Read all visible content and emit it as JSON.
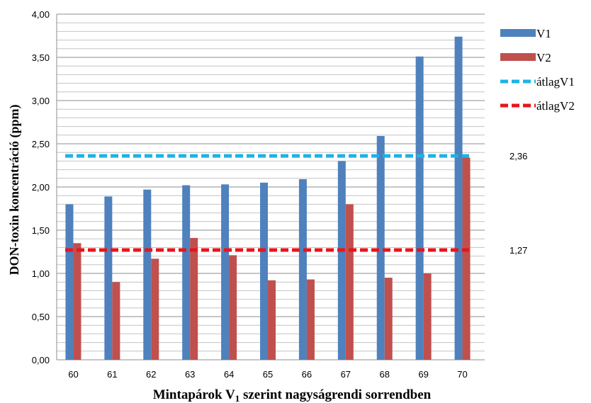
{
  "chart_data": {
    "type": "bar",
    "title": "",
    "xlabel": "Mintapárok V",
    "xlabel_sub": "1",
    "xlabel_rest": " szerint nagyságrendi sorrendben",
    "ylabel": "DON-toxin koncentráció  (ppm)",
    "ylim": [
      0,
      4
    ],
    "ytick_step": 0.5,
    "ytick_labels": [
      "0,00",
      "0,50",
      "1,00",
      "1,50",
      "2,00",
      "2,50",
      "3,00",
      "3,50",
      "4,00"
    ],
    "categories": [
      "60",
      "61",
      "62",
      "63",
      "64",
      "65",
      "66",
      "67",
      "68",
      "69",
      "70"
    ],
    "series": [
      {
        "name": "V1",
        "color": "#4F81BD",
        "values": [
          1.8,
          1.89,
          1.97,
          2.02,
          2.03,
          2.05,
          2.09,
          2.3,
          2.59,
          3.51,
          3.74
        ]
      },
      {
        "name": "V2",
        "color": "#C0504D",
        "values": [
          1.35,
          0.9,
          1.17,
          1.41,
          1.21,
          0.92,
          0.93,
          1.8,
          0.95,
          1.0,
          2.34
        ]
      }
    ],
    "averages": [
      {
        "name": "átlagV1",
        "value": 2.36,
        "label": "2,36",
        "color": "#1CB3E6"
      },
      {
        "name": "átlagV2",
        "value": 1.27,
        "label": "1,27",
        "color": "#E8151B"
      }
    ],
    "grid": true,
    "grid_minor_step": 0.1,
    "legend_position": "right"
  }
}
